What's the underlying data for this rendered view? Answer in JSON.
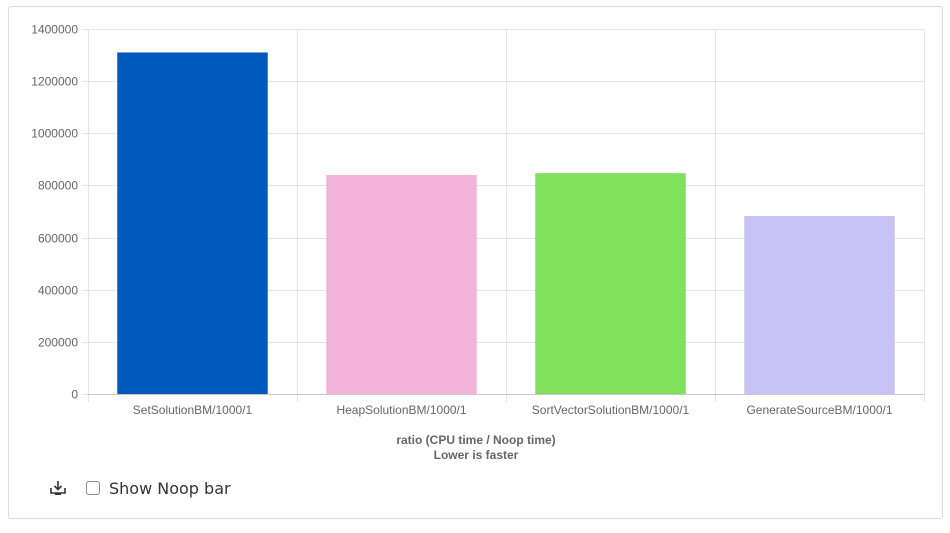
{
  "chart_data": {
    "type": "bar",
    "categories": [
      "SetSolutionBM/1000/1",
      "HeapSolutionBM/1000/1",
      "SortVectorSolutionBM/1000/1",
      "GenerateSourceBM/1000/1"
    ],
    "values": [
      1310000,
      840000,
      847000,
      683000
    ],
    "colors": [
      "#005abd",
      "#f4b4da",
      "#80df5b",
      "#c8c1f4"
    ],
    "yticks": [
      "0",
      "200000",
      "400000",
      "600000",
      "800000",
      "1000000",
      "1200000",
      "1400000"
    ],
    "ylim": [
      0,
      1400000
    ],
    "xlabel": "ratio (CPU time / Noop time)",
    "xlabel2": "Lower is faster",
    "grid": true,
    "gridColor": "#e5e5e5"
  },
  "controls": {
    "download_icon": "download-icon",
    "noop_label": "Show Noop bar",
    "noop_checked": false
  }
}
